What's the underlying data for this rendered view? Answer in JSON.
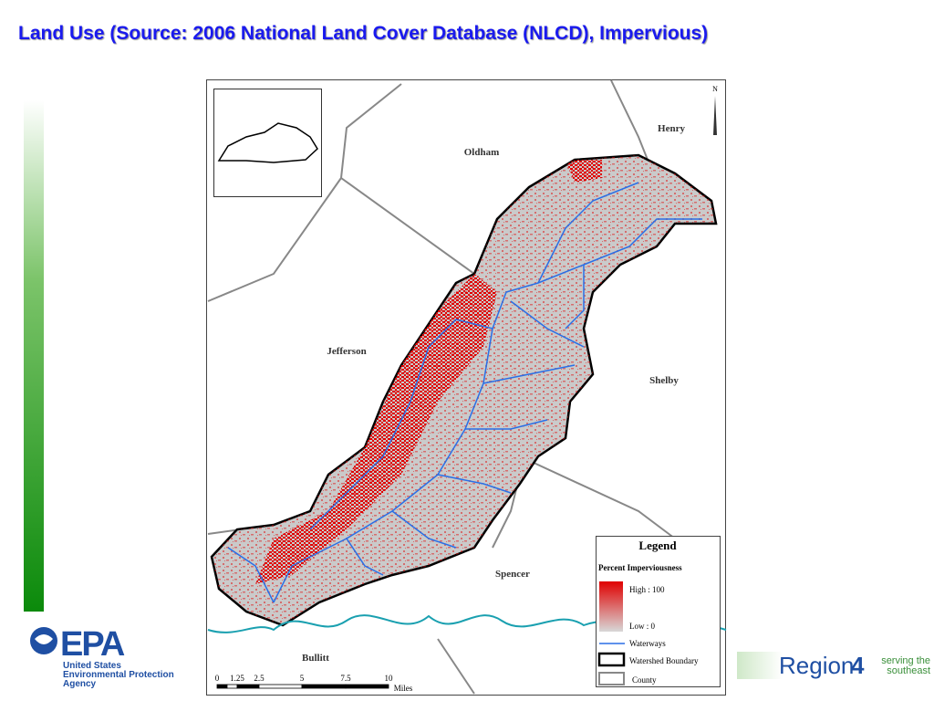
{
  "header": {
    "title": "Land Use (Source: 2006 National Land Cover Database (NLCD), Impervious)"
  },
  "map": {
    "north": "N",
    "counties": [
      "Henry",
      "Oldham",
      "Jefferson",
      "Shelby",
      "Spencer",
      "Bullitt"
    ],
    "legend": {
      "title": "Legend",
      "heading": "Percent Imperviousness",
      "high": "High : 100",
      "low": "Low : 0",
      "items": [
        "Waterways",
        "Watershed Boundary",
        "County"
      ]
    },
    "scale": {
      "ticks": [
        "0",
        "1.25",
        "2.5",
        "5",
        "7.5",
        "10"
      ],
      "unit": "Miles"
    }
  },
  "footer": {
    "epa": {
      "mark": "EPA",
      "lines": [
        "United States",
        "Environmental Protection",
        "Agency"
      ]
    },
    "region": {
      "name": "Region",
      "number": "4",
      "tagline": [
        "serving the",
        "southeast"
      ]
    }
  }
}
